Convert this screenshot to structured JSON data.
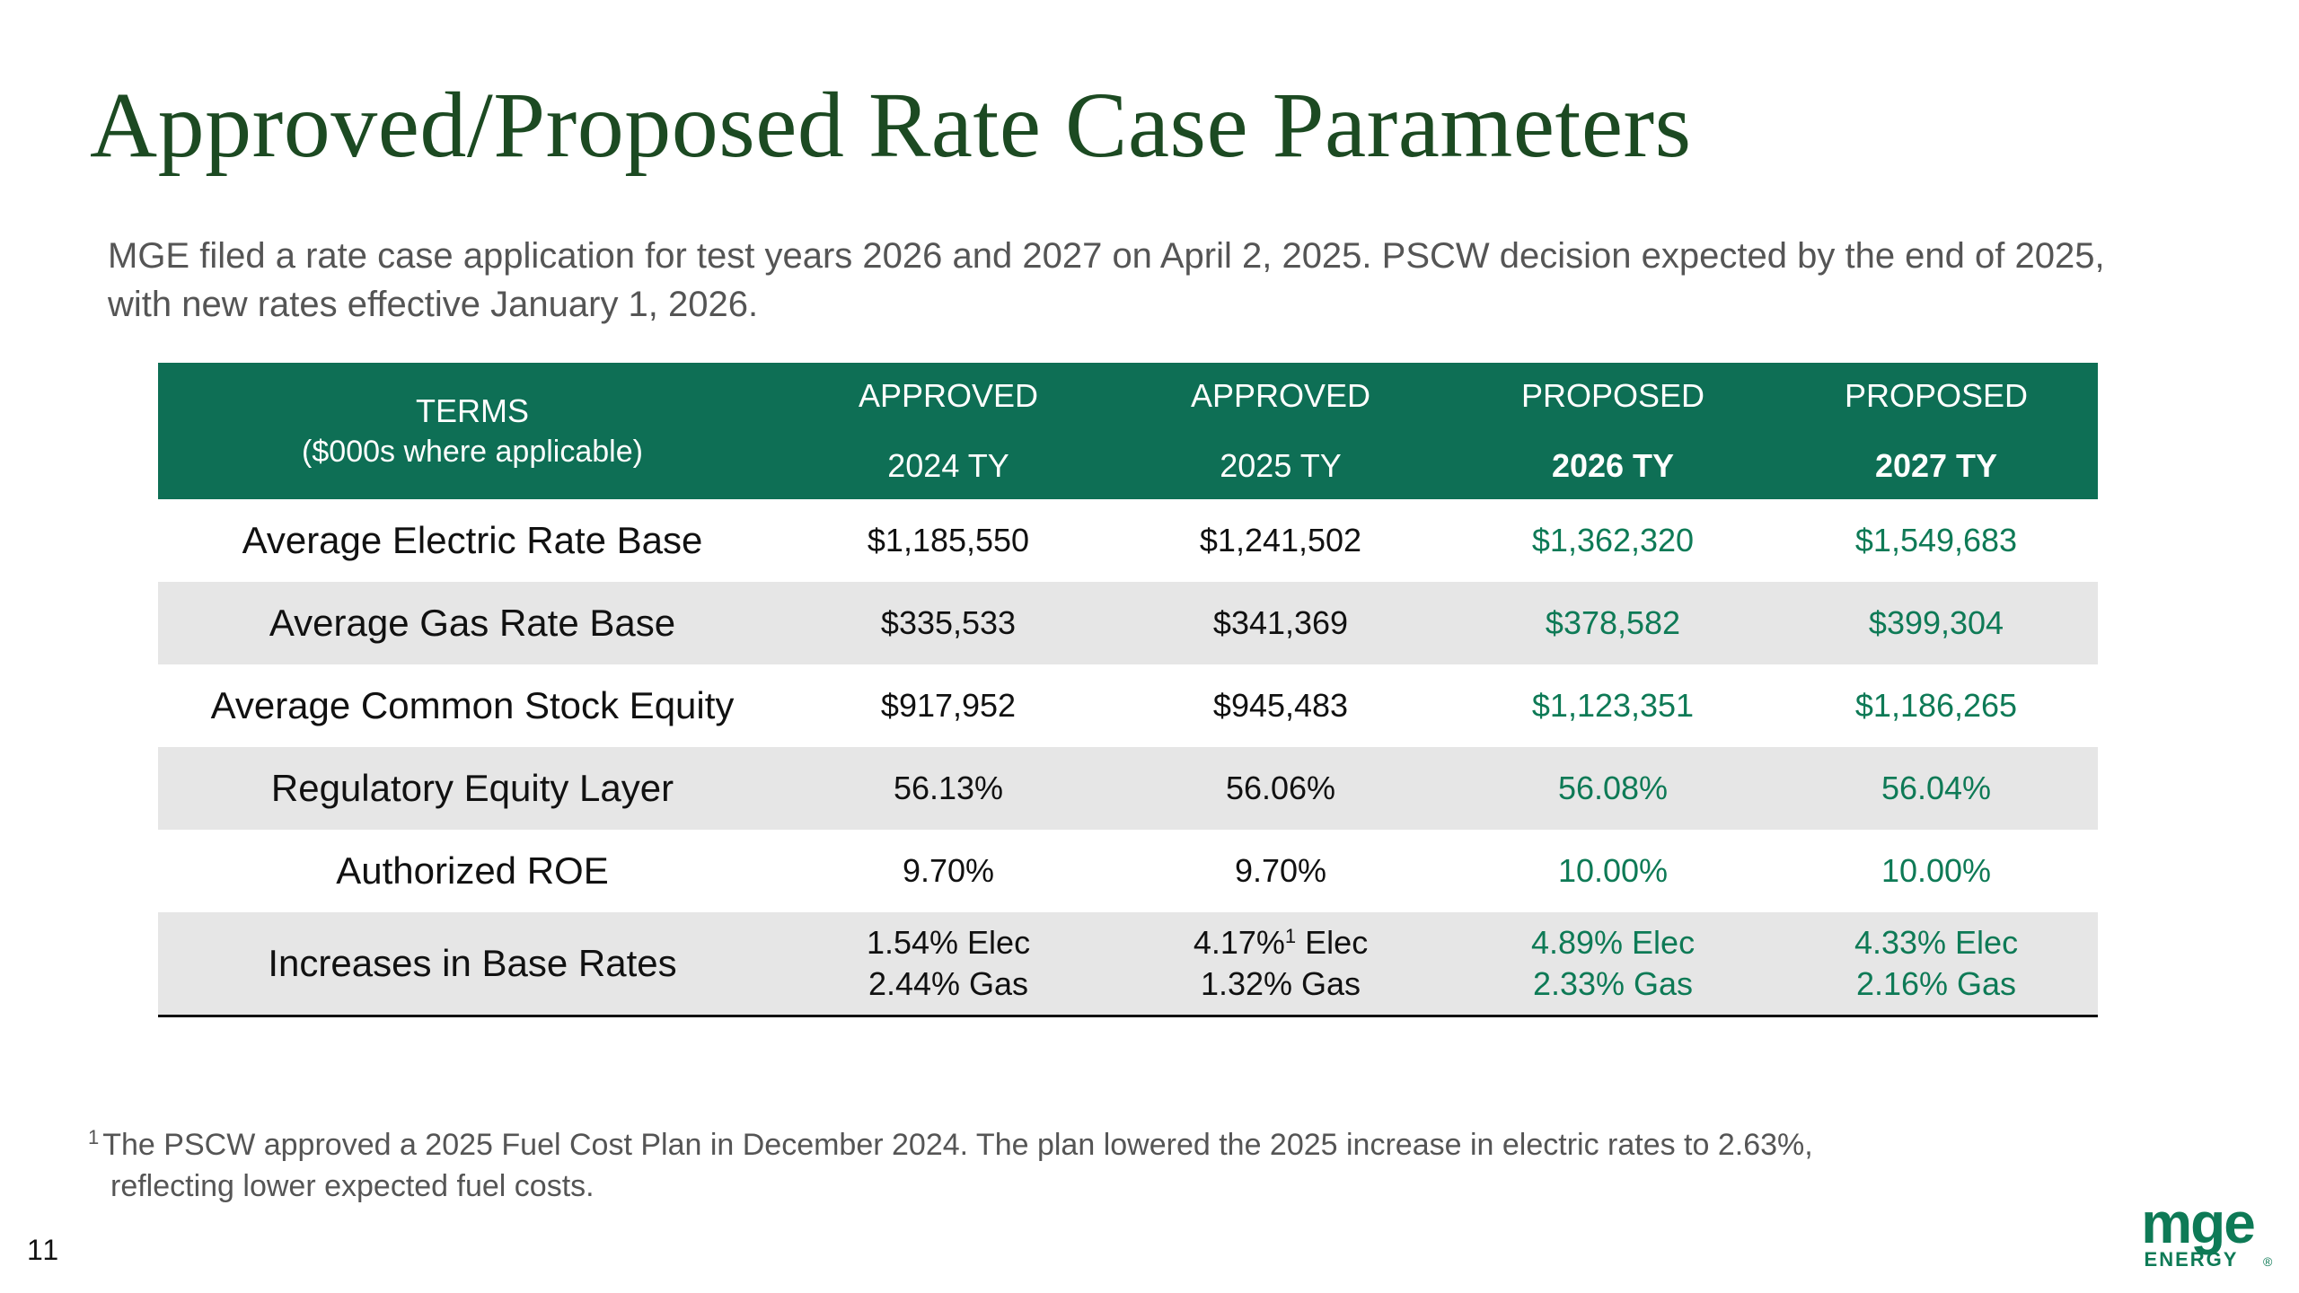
{
  "slide": {
    "title": "Approved/Proposed Rate Case Parameters",
    "subtitle": "MGE filed a rate case application for test years 2026 and 2027 on April 2, 2025. PSCW decision expected by the end of 2025, with new rates effective January 1, 2026.",
    "page_number": "11"
  },
  "table": {
    "header": {
      "terms": "TERMS",
      "terms_sub": "($000s where applicable)",
      "columns": [
        {
          "status": "APPROVED",
          "year": "2024 TY"
        },
        {
          "status": "APPROVED",
          "year": "2025 TY"
        },
        {
          "status": "PROPOSED",
          "year": "2026 TY"
        },
        {
          "status": "PROPOSED",
          "year": "2027 TY"
        }
      ]
    },
    "rows": [
      {
        "term": "Average Electric Rate Base",
        "values": [
          "$1,185,550",
          "$1,241,502",
          "$1,362,320",
          "$1,549,683"
        ]
      },
      {
        "term": "Average Gas Rate Base",
        "values": [
          "$335,533",
          "$341,369",
          "$378,582",
          "$399,304"
        ]
      },
      {
        "term": "Average Common Stock Equity",
        "values": [
          "$917,952",
          "$945,483",
          "$1,123,351",
          "$1,186,265"
        ]
      },
      {
        "term": "Regulatory Equity Layer",
        "values": [
          "56.13%",
          "56.06%",
          "56.08%",
          "56.04%"
        ]
      },
      {
        "term": "Authorized ROE",
        "values": [
          "9.70%",
          "9.70%",
          "10.00%",
          "10.00%"
        ]
      }
    ],
    "increases_row": {
      "term": "Increases in Base Rates",
      "elec_pct": [
        "1.54%",
        "4.17%",
        "4.89%",
        "4.33%"
      ],
      "elec_suffix": "Elec",
      "footnote_ref": "1",
      "gas": [
        "2.44% Gas",
        "1.32% Gas",
        "2.33% Gas",
        "2.16% Gas"
      ]
    }
  },
  "footnote": {
    "marker": "1",
    "line1": "The PSCW approved a 2025 Fuel Cost Plan in December 2024. The plan lowered the 2025 increase in electric rates to 2.63%,",
    "line2": "reflecting lower expected fuel costs."
  },
  "logo": {
    "brand": "mge",
    "sub": "ENERGY",
    "registered": "®",
    "color": "#0e7a56"
  },
  "colors": {
    "title": "#1c4a22",
    "header_bg": "#0e6f55",
    "proposed_text": "#0e7a56",
    "row_shade": "#e6e6e6"
  }
}
